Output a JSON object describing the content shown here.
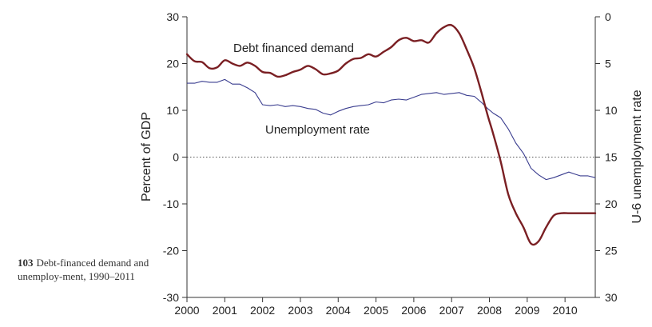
{
  "caption": {
    "number": "103",
    "text": "Debt-financed demand and unemploy-ment, 1990–2011"
  },
  "chart_data": {
    "type": "line",
    "title": "",
    "xlabel": "",
    "ylabel": "Percent of GDP",
    "y2label": "U-6 unemployment rate",
    "xlim": [
      2000,
      2010.8
    ],
    "ylim": [
      -30,
      30
    ],
    "y2lim": [
      0,
      30
    ],
    "y2_inverted": true,
    "x_ticks": [
      "2000",
      "2001",
      "2002",
      "2003",
      "2004",
      "2005",
      "2006",
      "2007",
      "2008",
      "2009",
      "2010"
    ],
    "y_ticks": [
      "30",
      "20",
      "10",
      "0",
      "-10",
      "-20",
      "-30"
    ],
    "y2_ticks": [
      "0",
      "5",
      "10",
      "15",
      "20",
      "25",
      "30"
    ],
    "zero_line": "dotted",
    "colors": {
      "debt": "#7a1f23",
      "unemployment": "#3a3d8f"
    },
    "series": [
      {
        "name": "Debt financed demand",
        "axis": "left",
        "x": [
          2000.0,
          2000.2,
          2000.4,
          2000.6,
          2000.8,
          2001.0,
          2001.2,
          2001.4,
          2001.6,
          2001.8,
          2002.0,
          2002.2,
          2002.4,
          2002.6,
          2002.8,
          2003.0,
          2003.2,
          2003.4,
          2003.6,
          2003.8,
          2004.0,
          2004.2,
          2004.4,
          2004.6,
          2004.8,
          2005.0,
          2005.2,
          2005.4,
          2005.6,
          2005.8,
          2006.0,
          2006.2,
          2006.4,
          2006.6,
          2006.8,
          2007.0,
          2007.2,
          2007.4,
          2007.6,
          2007.8,
          2007.95,
          2008.1,
          2008.3,
          2008.5,
          2008.7,
          2008.9,
          2009.1,
          2009.3,
          2009.5,
          2009.7,
          2009.9,
          2010.1,
          2010.25,
          2010.4,
          2010.6,
          2010.8
        ],
        "values": [
          22.0,
          20.5,
          20.3,
          19.0,
          19.2,
          20.7,
          20.0,
          19.5,
          20.2,
          19.5,
          18.2,
          18.0,
          17.2,
          17.5,
          18.2,
          18.7,
          19.5,
          18.8,
          17.7,
          17.9,
          18.5,
          20.0,
          21.0,
          21.2,
          22.0,
          21.5,
          22.5,
          23.5,
          25.0,
          25.5,
          24.8,
          25.0,
          24.5,
          26.5,
          27.8,
          28.2,
          26.5,
          23.0,
          19.0,
          13.5,
          9.0,
          5.0,
          -1.0,
          -8.0,
          -12.0,
          -15.0,
          -18.5,
          -18.0,
          -15.0,
          -12.5,
          -12.0,
          -12.0,
          -12.0,
          -12.0,
          -12.0,
          -12.0
        ]
      },
      {
        "name": "Unemployment rate",
        "axis": "right",
        "x": [
          2000.0,
          2000.2,
          2000.4,
          2000.6,
          2000.8,
          2001.0,
          2001.2,
          2001.4,
          2001.6,
          2001.8,
          2002.0,
          2002.2,
          2002.4,
          2002.6,
          2002.8,
          2003.0,
          2003.2,
          2003.4,
          2003.6,
          2003.8,
          2004.0,
          2004.2,
          2004.4,
          2004.6,
          2004.8,
          2005.0,
          2005.2,
          2005.4,
          2005.6,
          2005.8,
          2006.0,
          2006.2,
          2006.4,
          2006.6,
          2006.8,
          2007.0,
          2007.2,
          2007.4,
          2007.6,
          2007.8,
          2007.95,
          2008.1,
          2008.3,
          2008.5,
          2008.7,
          2008.9,
          2009.1,
          2009.3,
          2009.5,
          2009.7,
          2009.9,
          2010.1,
          2010.25,
          2010.4,
          2010.6,
          2010.8
        ],
        "values": [
          7.1,
          7.1,
          6.9,
          7.0,
          7.0,
          6.7,
          7.2,
          7.2,
          7.6,
          8.1,
          9.4,
          9.5,
          9.4,
          9.6,
          9.5,
          9.6,
          9.8,
          9.9,
          10.3,
          10.5,
          10.1,
          9.8,
          9.6,
          9.5,
          9.4,
          9.1,
          9.2,
          8.9,
          8.8,
          8.9,
          8.6,
          8.3,
          8.2,
          8.1,
          8.3,
          8.2,
          8.1,
          8.4,
          8.5,
          9.2,
          9.8,
          10.3,
          10.8,
          12.0,
          13.5,
          14.6,
          16.2,
          16.9,
          17.4,
          17.2,
          16.9,
          16.6,
          16.8,
          17.0,
          17.0,
          17.2
        ]
      }
    ],
    "annotations": [
      {
        "text": "Debt financed demand",
        "near_series": "Debt financed demand"
      },
      {
        "text": "Unemployment rate",
        "near_series": "Unemployment rate"
      }
    ]
  }
}
